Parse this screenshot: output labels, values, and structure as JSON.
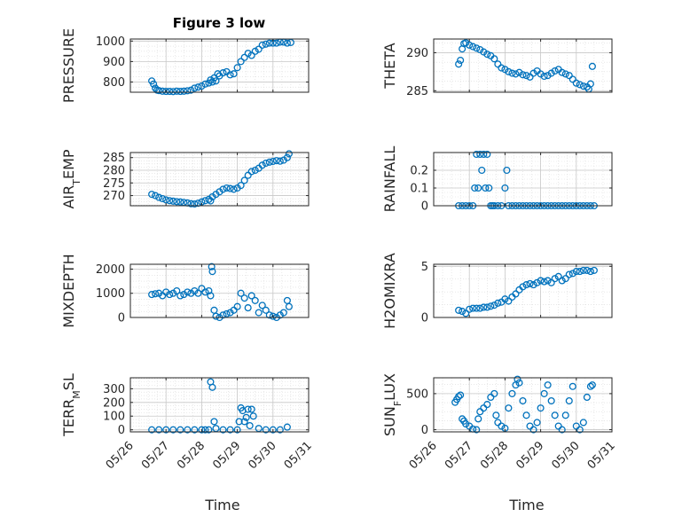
{
  "figure": {
    "title": "Figure 3 low",
    "xlabel": "Time"
  },
  "colors": {
    "marker": "#0072BD",
    "axis": "#262626",
    "grid": "#d9d9d9"
  },
  "chart_data": [
    {
      "type": "scatter",
      "ylabel": "PRESSURE",
      "ylabel_sub": "",
      "ylim": [
        750,
        1010
      ],
      "yticks": [
        800,
        900,
        1000
      ],
      "grid": true,
      "xlim": [
        "05/26",
        "05/31"
      ],
      "xticks": [
        "05/26",
        "05/27",
        "05/28",
        "05/29",
        "05/30",
        "05/31"
      ],
      "x": [
        26.6,
        26.65,
        26.7,
        26.75,
        26.8,
        26.9,
        27.0,
        27.1,
        27.2,
        27.3,
        27.4,
        27.5,
        27.6,
        27.7,
        27.8,
        27.9,
        28.0,
        28.1,
        28.2,
        28.25,
        28.3,
        28.35,
        28.4,
        28.45,
        28.5,
        28.6,
        28.7,
        28.8,
        28.9,
        29.0,
        29.1,
        29.2,
        29.3,
        29.4,
        29.5,
        29.6,
        29.7,
        29.8,
        29.9,
        30.0,
        30.1,
        30.2,
        30.3,
        30.4,
        30.5
      ],
      "y": [
        805,
        790,
        770,
        760,
        758,
        755,
        754,
        754,
        753,
        755,
        754,
        755,
        757,
        760,
        770,
        775,
        780,
        790,
        795,
        810,
        800,
        820,
        805,
        840,
        830,
        845,
        850,
        835,
        840,
        870,
        900,
        920,
        940,
        930,
        950,
        960,
        980,
        985,
        990,
        990,
        990,
        995,
        995,
        990,
        993
      ]
    },
    {
      "type": "scatter",
      "ylabel": "THETA",
      "ylabel_sub": "",
      "ylim": [
        284.8,
        291.8
      ],
      "yticks": [
        285,
        290
      ],
      "grid": true,
      "xlim": [
        "05/26",
        "05/31"
      ],
      "xticks": [
        "05/26",
        "05/27",
        "05/28",
        "05/29",
        "05/30",
        "05/31"
      ],
      "x": [
        26.7,
        26.75,
        26.8,
        26.85,
        26.9,
        27.0,
        27.1,
        27.2,
        27.3,
        27.4,
        27.5,
        27.6,
        27.7,
        27.8,
        27.9,
        28.0,
        28.1,
        28.2,
        28.3,
        28.4,
        28.5,
        28.6,
        28.7,
        28.8,
        28.9,
        29.0,
        29.1,
        29.2,
        29.3,
        29.4,
        29.5,
        29.6,
        29.7,
        29.8,
        29.9,
        30.0,
        30.1,
        30.2,
        30.3,
        30.35,
        30.4,
        30.45
      ],
      "y": [
        288.5,
        289.0,
        290.5,
        291.2,
        291.3,
        291.0,
        290.8,
        290.6,
        290.4,
        290.1,
        289.8,
        289.6,
        289.2,
        288.5,
        288.0,
        287.8,
        287.5,
        287.3,
        287.2,
        287.4,
        287.1,
        287.0,
        286.8,
        287.3,
        287.6,
        287.2,
        286.9,
        287.0,
        287.3,
        287.6,
        287.8,
        287.4,
        287.2,
        287.0,
        286.5,
        286.0,
        285.8,
        285.6,
        285.5,
        285.2,
        285.9,
        288.2
      ]
    },
    {
      "type": "scatter",
      "ylabel": "AIR",
      "ylabel_sub": "T",
      "ylabel_rest": "EMP",
      "ylim": [
        266,
        287
      ],
      "yticks": [
        270,
        275,
        280,
        285
      ],
      "grid": true,
      "xlim": [
        "05/26",
        "05/31"
      ],
      "xticks": [
        "05/26",
        "05/27",
        "05/28",
        "05/29",
        "05/30",
        "05/31"
      ],
      "x": [
        26.6,
        26.7,
        26.8,
        26.9,
        27.0,
        27.1,
        27.2,
        27.3,
        27.4,
        27.5,
        27.6,
        27.7,
        27.8,
        27.9,
        28.0,
        28.1,
        28.2,
        28.25,
        28.3,
        28.4,
        28.5,
        28.6,
        28.7,
        28.8,
        28.9,
        29.0,
        29.1,
        29.2,
        29.3,
        29.4,
        29.5,
        29.6,
        29.7,
        29.8,
        29.9,
        30.0,
        30.1,
        30.2,
        30.3,
        30.4,
        30.45
      ],
      "y": [
        270.5,
        270.0,
        269.3,
        268.8,
        268.3,
        268.0,
        267.8,
        267.6,
        267.5,
        267.3,
        267.1,
        266.8,
        266.7,
        267.0,
        267.5,
        268.0,
        268.5,
        267.9,
        269.5,
        270.5,
        271.5,
        272.5,
        273.0,
        272.8,
        272.5,
        273.0,
        274.0,
        276.0,
        278.0,
        279.5,
        280.0,
        280.8,
        282.0,
        282.8,
        283.2,
        283.5,
        283.8,
        283.6,
        284.0,
        285.0,
        286.5
      ]
    },
    {
      "type": "scatter",
      "ylabel": "RAINFALL",
      "ylabel_sub": "",
      "ylim": [
        0,
        0.3
      ],
      "yticks": [
        0,
        0.1,
        0.2
      ],
      "grid": true,
      "xlim": [
        "05/26",
        "05/31"
      ],
      "xticks": [
        "05/26",
        "05/27",
        "05/28",
        "05/29",
        "05/30",
        "05/31"
      ],
      "x": [
        26.7,
        26.8,
        26.9,
        27.0,
        27.1,
        27.15,
        27.2,
        27.25,
        27.3,
        27.35,
        27.4,
        27.45,
        27.5,
        27.55,
        27.6,
        27.65,
        27.7,
        27.8,
        27.9,
        28.0,
        28.05,
        28.1,
        28.2,
        28.3,
        28.4,
        28.5,
        28.6,
        28.7,
        28.8,
        28.9,
        29.0,
        29.1,
        29.2,
        29.3,
        29.4,
        29.5,
        29.6,
        29.7,
        29.8,
        29.9,
        30.0,
        30.1,
        30.2,
        30.3,
        30.4,
        30.5
      ],
      "y": [
        0,
        0,
        0,
        0,
        0,
        0.1,
        0.29,
        0.1,
        0.29,
        0.2,
        0.29,
        0.1,
        0.29,
        0.1,
        0,
        0,
        0,
        0,
        0,
        0.1,
        0.2,
        0,
        0,
        0,
        0,
        0,
        0,
        0,
        0,
        0,
        0,
        0,
        0,
        0,
        0,
        0,
        0,
        0,
        0,
        0,
        0,
        0,
        0,
        0,
        0,
        0
      ]
    },
    {
      "type": "scatter",
      "ylabel": "MIXDEPTH",
      "ylabel_sub": "",
      "ylim": [
        0,
        2200
      ],
      "yticks": [
        0,
        1000,
        2000
      ],
      "grid": true,
      "xlim": [
        "05/26",
        "05/31"
      ],
      "xticks": [
        "05/26",
        "05/27",
        "05/28",
        "05/29",
        "05/30",
        "05/31"
      ],
      "x": [
        26.6,
        26.7,
        26.8,
        26.9,
        27.0,
        27.1,
        27.2,
        27.3,
        27.4,
        27.5,
        27.6,
        27.7,
        27.8,
        27.9,
        28.0,
        28.1,
        28.2,
        28.25,
        28.28,
        28.3,
        28.35,
        28.4,
        28.5,
        28.6,
        28.7,
        28.8,
        28.9,
        29.0,
        29.1,
        29.2,
        29.3,
        29.4,
        29.5,
        29.6,
        29.7,
        29.8,
        29.9,
        30.0,
        30.1,
        30.2,
        30.3,
        30.4,
        30.45
      ],
      "y": [
        950,
        980,
        1000,
        900,
        1050,
        950,
        1000,
        1100,
        900,
        950,
        1050,
        1000,
        1100,
        1000,
        1200,
        1050,
        1100,
        900,
        2100,
        1900,
        300,
        50,
        0,
        100,
        150,
        200,
        300,
        450,
        1000,
        800,
        400,
        900,
        700,
        200,
        500,
        300,
        100,
        50,
        0,
        100,
        200,
        700,
        450
      ]
    },
    {
      "type": "scatter",
      "ylabel": "H2OMIXRA",
      "ylabel_sub": "",
      "ylim": [
        0,
        5.2
      ],
      "yticks": [
        0,
        5
      ],
      "grid": true,
      "xlim": [
        "05/26",
        "05/31"
      ],
      "xticks": [
        "05/26",
        "05/27",
        "05/28",
        "05/29",
        "05/30",
        "05/31"
      ],
      "x": [
        26.7,
        26.8,
        26.9,
        27.0,
        27.1,
        27.2,
        27.3,
        27.4,
        27.5,
        27.6,
        27.7,
        27.8,
        27.9,
        28.0,
        28.1,
        28.2,
        28.3,
        28.4,
        28.5,
        28.6,
        28.7,
        28.8,
        28.9,
        29.0,
        29.1,
        29.2,
        29.3,
        29.4,
        29.5,
        29.6,
        29.7,
        29.8,
        29.9,
        30.0,
        30.1,
        30.2,
        30.3,
        30.4,
        30.5
      ],
      "y": [
        0.7,
        0.6,
        0.4,
        0.8,
        0.9,
        0.9,
        0.9,
        1.0,
        1.0,
        1.1,
        1.2,
        1.4,
        1.5,
        1.8,
        1.6,
        2.0,
        2.3,
        2.7,
        3.0,
        3.2,
        3.3,
        3.2,
        3.4,
        3.6,
        3.5,
        3.6,
        3.4,
        3.8,
        4.0,
        3.6,
        3.8,
        4.2,
        4.3,
        4.5,
        4.5,
        4.6,
        4.6,
        4.5,
        4.6
      ]
    },
    {
      "type": "scatter",
      "ylabel": "TERR",
      "ylabel_sub": "M",
      "ylabel_rest": "SL",
      "ylim": [
        -15,
        380
      ],
      "yticks": [
        0,
        100,
        200,
        300
      ],
      "grid": true,
      "xlim": [
        "05/26",
        "05/31"
      ],
      "xticks": [
        "05/26",
        "05/27",
        "05/28",
        "05/29",
        "05/30",
        "05/31"
      ],
      "xtick_labels": [
        "05/26",
        "05/27",
        "05/28",
        "05/29",
        "05/30",
        "05/31"
      ],
      "x": [
        26.6,
        26.8,
        27.0,
        27.2,
        27.4,
        27.6,
        27.8,
        28.0,
        28.1,
        28.2,
        28.25,
        28.3,
        28.35,
        28.4,
        28.6,
        28.8,
        29.0,
        29.05,
        29.1,
        29.15,
        29.2,
        29.25,
        29.3,
        29.35,
        29.4,
        29.45,
        29.6,
        29.8,
        30.0,
        30.2,
        30.4
      ],
      "y": [
        0,
        0,
        0,
        0,
        0,
        0,
        0,
        0,
        0,
        0,
        350,
        310,
        60,
        10,
        0,
        0,
        0,
        60,
        160,
        140,
        60,
        90,
        150,
        30,
        150,
        100,
        10,
        0,
        0,
        0,
        20
      ]
    },
    {
      "type": "scatter",
      "ylabel": "SUN",
      "ylabel_sub": "F",
      "ylabel_rest": "LUX",
      "ylim": [
        -30,
        720
      ],
      "yticks": [
        0,
        500
      ],
      "grid": true,
      "xlim": [
        "05/26",
        "05/31"
      ],
      "xticks": [
        "05/26",
        "05/27",
        "05/28",
        "05/29",
        "05/30",
        "05/31"
      ],
      "xtick_labels": [
        "05/26",
        "05/27",
        "05/28",
        "05/29",
        "05/30",
        "05/31"
      ],
      "x": [
        26.6,
        26.65,
        26.7,
        26.75,
        26.8,
        26.85,
        26.9,
        27.0,
        27.1,
        27.2,
        27.25,
        27.3,
        27.4,
        27.5,
        27.6,
        27.7,
        27.75,
        27.8,
        27.9,
        28.0,
        28.1,
        28.2,
        28.3,
        28.35,
        28.4,
        28.5,
        28.6,
        28.7,
        28.8,
        28.9,
        29.0,
        29.1,
        29.2,
        29.3,
        29.4,
        29.5,
        29.6,
        29.7,
        29.8,
        29.9,
        30.0,
        30.1,
        30.2,
        30.3,
        30.4,
        30.45
      ],
      "y": [
        380,
        420,
        460,
        480,
        150,
        120,
        80,
        50,
        10,
        0,
        150,
        250,
        300,
        350,
        450,
        500,
        200,
        100,
        50,
        20,
        300,
        500,
        620,
        700,
        650,
        400,
        200,
        50,
        0,
        100,
        300,
        500,
        620,
        400,
        200,
        50,
        0,
        200,
        400,
        600,
        50,
        0,
        100,
        450,
        600,
        620
      ]
    }
  ]
}
